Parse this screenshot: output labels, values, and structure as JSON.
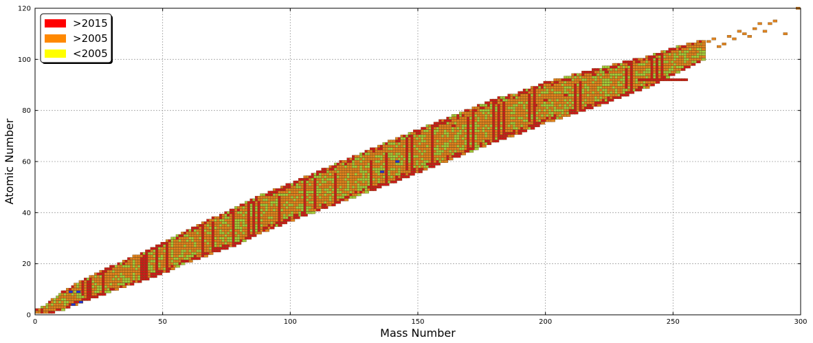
{
  "chart_data": {
    "type": "heatmap",
    "title": "",
    "xlabel": "Mass Number",
    "ylabel": "Atomic Number",
    "xlim": [
      0,
      300
    ],
    "ylim": [
      0,
      120
    ],
    "xticks": [
      0,
      50,
      100,
      150,
      200,
      250,
      300
    ],
    "yticks": [
      0,
      20,
      40,
      60,
      80,
      100,
      120
    ],
    "grid": true,
    "legend": {
      "placement": "top-left",
      "entries": [
        {
          "label": ">2015",
          "color": "#ff0000"
        },
        {
          "label": ">2005",
          "color": "#ff8800"
        },
        {
          "label": "<2005",
          "color": "#ffff00"
        }
      ]
    },
    "colors": {
      "orange_cell": "#e0821e",
      "green_cell": "#9fcc3a",
      "red_cell": "#cc1a1a",
      "blue_cell": "#2233cc",
      "cell_edge": "#6b4a17"
    },
    "band_center": [
      [
        1,
        1
      ],
      [
        4,
        2
      ],
      [
        8,
        4
      ],
      [
        12,
        6
      ],
      [
        16,
        8
      ],
      [
        20,
        10
      ],
      [
        30,
        14
      ],
      [
        40,
        18
      ],
      [
        50,
        22
      ],
      [
        60,
        27
      ],
      [
        70,
        31
      ],
      [
        80,
        35
      ],
      [
        90,
        40
      ],
      [
        100,
        44
      ],
      [
        110,
        48
      ],
      [
        120,
        52
      ],
      [
        130,
        56
      ],
      [
        140,
        60
      ],
      [
        150,
        64
      ],
      [
        160,
        68
      ],
      [
        170,
        72
      ],
      [
        180,
        76
      ],
      [
        190,
        79
      ],
      [
        200,
        83
      ],
      [
        210,
        86
      ],
      [
        220,
        89
      ],
      [
        230,
        92
      ],
      [
        240,
        95
      ],
      [
        250,
        99
      ],
      [
        260,
        103
      ],
      [
        270,
        107
      ],
      [
        280,
        111
      ],
      [
        290,
        115
      ],
      [
        300,
        119
      ]
    ],
    "band_halfwidth": [
      [
        1,
        0.5
      ],
      [
        10,
        3
      ],
      [
        20,
        4
      ],
      [
        40,
        5
      ],
      [
        60,
        6
      ],
      [
        80,
        7
      ],
      [
        100,
        7
      ],
      [
        140,
        8
      ],
      [
        180,
        8
      ],
      [
        220,
        7
      ],
      [
        250,
        5
      ],
      [
        265,
        3
      ],
      [
        280,
        1
      ],
      [
        300,
        0.5
      ]
    ],
    "red_columns": [
      [
        3,
        1,
        2
      ],
      [
        19,
        8,
        12
      ],
      [
        21,
        6,
        13
      ],
      [
        22,
        6,
        14
      ],
      [
        27,
        8,
        16
      ],
      [
        42,
        14,
        22
      ],
      [
        43,
        13,
        23
      ],
      [
        44,
        13,
        24
      ],
      [
        48,
        17,
        28
      ],
      [
        52,
        17,
        28
      ],
      [
        66,
        22,
        34
      ],
      [
        70,
        23,
        36
      ],
      [
        78,
        27,
        40
      ],
      [
        84,
        29,
        42
      ],
      [
        86,
        32,
        44
      ],
      [
        88,
        33,
        44
      ],
      [
        96,
        34,
        46
      ],
      [
        106,
        38,
        52
      ],
      [
        110,
        42,
        53
      ],
      [
        118,
        42,
        55
      ],
      [
        132,
        48,
        60
      ],
      [
        138,
        46,
        63
      ],
      [
        146,
        57,
        69
      ],
      [
        148,
        56,
        70
      ],
      [
        156,
        54,
        73
      ],
      [
        170,
        63,
        77
      ],
      [
        172,
        64,
        80
      ],
      [
        180,
        68,
        82
      ],
      [
        182,
        67,
        82
      ],
      [
        184,
        67,
        83
      ],
      [
        194,
        76,
        86
      ],
      [
        196,
        72,
        87
      ],
      [
        212,
        79,
        90
      ],
      [
        214,
        79,
        91
      ],
      [
        232,
        89,
        96
      ],
      [
        234,
        87,
        98
      ],
      [
        242,
        92,
        100
      ],
      [
        244,
        92,
        100
      ],
      [
        246,
        90,
        102
      ]
    ],
    "red_row": {
      "z": 92,
      "a_from": 237,
      "a_to": 255
    },
    "scattered_points": [
      [
        258,
        103
      ],
      [
        260,
        106
      ],
      [
        262,
        104
      ],
      [
        264,
        107
      ],
      [
        266,
        108
      ],
      [
        268,
        105
      ],
      [
        270,
        106
      ],
      [
        272,
        109
      ],
      [
        274,
        108
      ],
      [
        276,
        111
      ],
      [
        278,
        110
      ],
      [
        280,
        109
      ],
      [
        282,
        112
      ],
      [
        284,
        114
      ],
      [
        286,
        111
      ],
      [
        288,
        114
      ],
      [
        290,
        115
      ],
      [
        294,
        110
      ],
      [
        299,
        120
      ]
    ],
    "red_points": [
      [
        224,
        95
      ],
      [
        219,
        94
      ],
      [
        208,
        86
      ],
      [
        200,
        84
      ],
      [
        196,
        82
      ],
      [
        164,
        74
      ]
    ],
    "blue_points": [
      [
        14,
        9
      ],
      [
        15,
        4
      ],
      [
        17,
        9
      ],
      [
        18,
        5
      ],
      [
        136,
        56
      ],
      [
        142,
        60
      ]
    ]
  }
}
